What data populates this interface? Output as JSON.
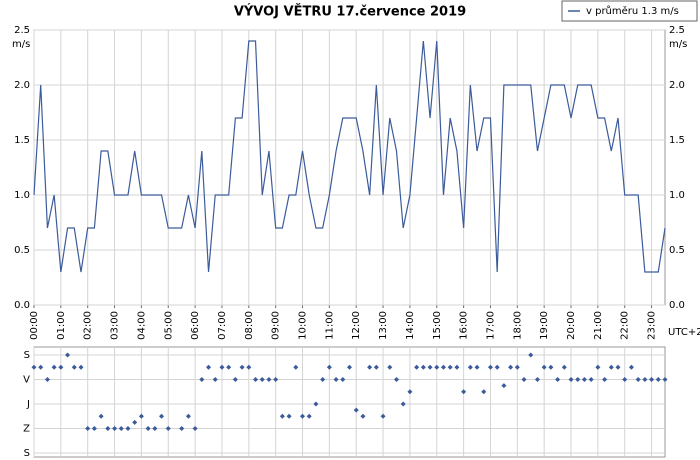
{
  "chart_data": [
    {
      "type": "line",
      "title": "VÝVOJ VĚTRU  17.července 2019",
      "y_unit": "m/s",
      "x_unit": "UTC+2",
      "legend": "top-right",
      "grid": true,
      "xlim": [
        0,
        23.5
      ],
      "ylim": [
        0,
        2.5
      ],
      "yticks": [
        {
          "value": 0,
          "label": "0.0"
        },
        0.5,
        {
          "value": 1,
          "label": "1.0"
        },
        1.5,
        {
          "value": 2,
          "label": "2.0"
        },
        2.5
      ],
      "xticks": [
        {
          "value": 0,
          "label": "00:00"
        },
        {
          "value": 1,
          "label": "01:00"
        },
        {
          "value": 2,
          "label": "02:00"
        },
        {
          "value": 3,
          "label": "03:00"
        },
        {
          "value": 4,
          "label": "04:00"
        },
        {
          "value": 5,
          "label": "05:00"
        },
        {
          "value": 6,
          "label": "06:00"
        },
        {
          "value": 7,
          "label": "07:00"
        },
        {
          "value": 8,
          "label": "08:00"
        },
        {
          "value": 9,
          "label": "09:00"
        },
        {
          "value": 10,
          "label": "10:00"
        },
        {
          "value": 11,
          "label": "11:00"
        },
        {
          "value": 12,
          "label": "12:00"
        },
        {
          "value": 13,
          "label": "13:00"
        },
        {
          "value": 14,
          "label": "14:00"
        },
        {
          "value": 15,
          "label": "15:00"
        },
        {
          "value": 16,
          "label": "16:00"
        },
        {
          "value": 17,
          "label": "17:00"
        },
        {
          "value": 18,
          "label": "18:00"
        },
        {
          "value": 19,
          "label": "19:00"
        },
        {
          "value": 20,
          "label": "20:00"
        },
        {
          "value": 21,
          "label": "21:00"
        },
        {
          "value": 22,
          "label": "22:00"
        },
        {
          "value": 23,
          "label": "23:00"
        }
      ],
      "x": [
        0,
        0.25,
        0.5,
        0.75,
        1,
        1.25,
        1.5,
        1.75,
        2,
        2.25,
        2.5,
        2.75,
        3,
        3.25,
        3.5,
        3.75,
        4,
        4.25,
        4.5,
        4.75,
        5,
        5.25,
        5.5,
        5.75,
        6,
        6.25,
        6.5,
        6.75,
        7,
        7.25,
        7.5,
        7.75,
        8,
        8.25,
        8.5,
        8.75,
        9,
        9.25,
        9.5,
        9.75,
        10,
        10.25,
        10.5,
        10.75,
        11,
        11.25,
        11.5,
        11.75,
        12,
        12.25,
        12.5,
        12.75,
        13,
        13.25,
        13.5,
        13.75,
        14,
        14.25,
        14.5,
        14.75,
        15,
        15.25,
        15.5,
        15.75,
        16,
        16.25,
        16.5,
        16.75,
        17,
        17.25,
        17.5,
        17.75,
        18,
        18.25,
        18.5,
        18.75,
        19,
        19.25,
        19.5,
        19.75,
        20,
        20.25,
        20.5,
        20.75,
        21,
        21.25,
        21.5,
        21.75,
        22,
        22.25,
        22.5,
        22.75,
        23,
        23.25,
        23.5
      ],
      "series": [
        {
          "name": "v průměru 1.3 m/s",
          "color": "#3b5b9b",
          "values": [
            1.0,
            2.0,
            0.7,
            1.0,
            0.3,
            0.7,
            0.7,
            0.3,
            0.7,
            0.7,
            1.4,
            1.4,
            1.0,
            1.0,
            1.0,
            1.4,
            1.0,
            1.0,
            1.0,
            1.0,
            0.7,
            0.7,
            0.7,
            1.0,
            0.7,
            1.4,
            0.3,
            1.0,
            1.0,
            1.0,
            1.7,
            1.7,
            2.4,
            2.4,
            1.0,
            1.4,
            0.7,
            0.7,
            1.0,
            1.0,
            1.4,
            1.0,
            0.7,
            0.7,
            1.0,
            1.4,
            1.7,
            1.7,
            1.7,
            1.4,
            1.0,
            2.0,
            1.0,
            1.7,
            1.4,
            0.7,
            1.0,
            1.7,
            2.4,
            1.7,
            2.4,
            1.0,
            1.7,
            1.4,
            0.7,
            2.0,
            1.4,
            1.7,
            1.7,
            0.3,
            2.0,
            2.0,
            2.0,
            2.0,
            2.0,
            1.4,
            1.7,
            2.0,
            2.0,
            2.0,
            1.7,
            2.0,
            2.0,
            2.0,
            1.7,
            1.7,
            1.4,
            1.7,
            1.0,
            1.0,
            1.0,
            0.3,
            0.3,
            0.3,
            0.7
          ]
        }
      ]
    },
    {
      "type": "scatter",
      "grid": true,
      "yreverse": true,
      "xlim": [
        0,
        23.5
      ],
      "ylim": [
        0,
        360
      ],
      "yticks": [
        {
          "value": 0,
          "label": "S"
        },
        {
          "value": 90,
          "label": "V"
        },
        {
          "value": 180,
          "label": "J"
        },
        {
          "value": 270,
          "label": "Z"
        },
        {
          "value": 360,
          "label": "S"
        }
      ],
      "xticks": [
        0,
        1,
        2,
        3,
        4,
        5,
        6,
        7,
        8,
        9,
        10,
        11,
        12,
        13,
        14,
        15,
        16,
        17,
        18,
        19,
        20,
        21,
        22,
        23
      ],
      "color": "#3b5b9b",
      "x": [
        0,
        0.25,
        0.5,
        0.75,
        1,
        1.25,
        1.5,
        1.75,
        2,
        2.25,
        2.5,
        2.75,
        3,
        3.25,
        3.5,
        3.75,
        4,
        4.25,
        4.5,
        4.75,
        5,
        5.25,
        5.5,
        5.75,
        6,
        6.25,
        6.5,
        6.75,
        7,
        7.25,
        7.5,
        7.75,
        8,
        8.25,
        8.5,
        8.75,
        9,
        9.25,
        9.5,
        9.75,
        10,
        10.25,
        10.5,
        10.75,
        11,
        11.25,
        11.5,
        11.75,
        12,
        12.25,
        12.5,
        12.75,
        13,
        13.25,
        13.5,
        13.75,
        14,
        14.25,
        14.5,
        14.75,
        15,
        15.25,
        15.5,
        15.75,
        16,
        16.25,
        16.5,
        16.75,
        17,
        17.25,
        17.5,
        17.75,
        18,
        18.25,
        18.5,
        18.75,
        19,
        19.25,
        19.5,
        19.75,
        20,
        20.25,
        20.5,
        20.75,
        21,
        21.25,
        21.5,
        21.75,
        22,
        22.25,
        22.5,
        22.75,
        23,
        23.25,
        23.5
      ],
      "values": [
        45,
        45,
        90,
        45,
        45,
        0,
        45,
        45,
        270,
        270,
        225,
        270,
        270,
        270,
        270,
        247.5,
        225,
        270,
        270,
        225,
        270,
        null,
        270,
        225,
        270,
        90,
        45,
        90,
        45,
        45,
        90,
        45,
        45,
        90,
        90,
        90,
        90,
        225,
        225,
        45,
        225,
        225,
        180,
        90,
        45,
        90,
        90,
        45,
        202.5,
        225,
        45,
        45,
        225,
        45,
        90,
        180,
        135,
        45,
        45,
        45,
        45,
        45,
        45,
        45,
        135,
        45,
        45,
        135,
        45,
        45,
        112.5,
        45,
        45,
        90,
        0,
        90,
        45,
        45,
        90,
        45,
        90,
        90,
        90,
        90,
        45,
        90,
        45,
        45,
        90,
        45,
        90,
        90,
        90,
        90,
        90
      ]
    }
  ]
}
